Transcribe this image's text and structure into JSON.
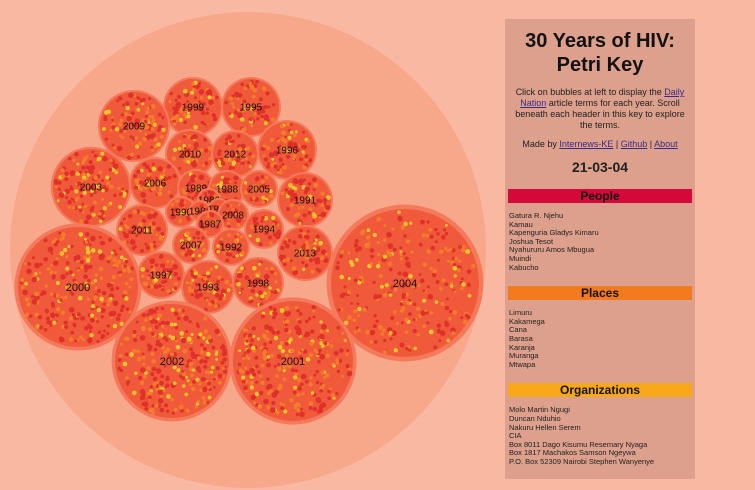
{
  "colors": {
    "page_bg": "#f9b8a1",
    "outer_circle": "#f7a88a",
    "bubble_fill": "#f05a3a",
    "bubble_ring": "#f57a5c",
    "dot_red": "#e0302a",
    "dot_orange": "#f47c2a",
    "dot_yellow": "#f8c52a",
    "people_header": "#d4093a",
    "places_header": "#f47a20",
    "organizations_header": "#f8a818"
  },
  "bubbles": [
    {
      "label": "1999"
    },
    {
      "label": "1995"
    },
    {
      "label": "2009"
    },
    {
      "label": "2010"
    },
    {
      "label": "2012"
    },
    {
      "label": "1996"
    },
    {
      "label": "2003"
    },
    {
      "label": "2006"
    },
    {
      "label": "1989"
    },
    {
      "label": "1988"
    },
    {
      "label": "2005"
    },
    {
      "label": "1991"
    },
    {
      "label": "1986"
    },
    {
      "label": "1990"
    },
    {
      "label": "1984"
    },
    {
      "label": "1985"
    },
    {
      "label": "2008"
    },
    {
      "label": "1987"
    },
    {
      "label": "2011"
    },
    {
      "label": "1994"
    },
    {
      "label": "2007"
    },
    {
      "label": "1992"
    },
    {
      "label": "2013"
    },
    {
      "label": "2000"
    },
    {
      "label": "1997"
    },
    {
      "label": "1993"
    },
    {
      "label": "1998"
    },
    {
      "label": "2004"
    },
    {
      "label": "2002"
    },
    {
      "label": "2001"
    }
  ],
  "key": {
    "title": "30 Years of HIV: Petri Key",
    "intro_before": "Click on bubbles at left to display the ",
    "intro_link": "Daily Nation",
    "intro_after": " article terms for each year. Scroll beneath each header in this key to explore the terms.",
    "made_by": "Made by ",
    "link_internews": "Internews-KE",
    "link_github": "Github",
    "link_about": "About",
    "separator": " | ",
    "date": "21-03-04",
    "people_header": "People",
    "people": [
      "Gatura R. Njehu",
      "Kamau",
      "Kapenguria Gladys Kimaru",
      "Joshua Tesot",
      "Nyahururu Amos Mbugua",
      "Muindi",
      "Kabucho"
    ],
    "places_header": "Places",
    "places": [
      "Limuru",
      "Kakamega",
      "Cana",
      "Barasa",
      "Karanja",
      "Muranga",
      "Mtwapa"
    ],
    "organizations_header": "Organizations",
    "organizations": [
      "Molo Martin Ngugi",
      "Duncan Nduhio",
      "Nakuru Hellen Serem",
      "CIA",
      "Box 8011 Dago Kisumu Resemary Nyaga",
      "Box 1817 Machakos Samson Ngeywa",
      "P.O. Box 52309 Nairobi Stephen Wanyenye"
    ]
  }
}
